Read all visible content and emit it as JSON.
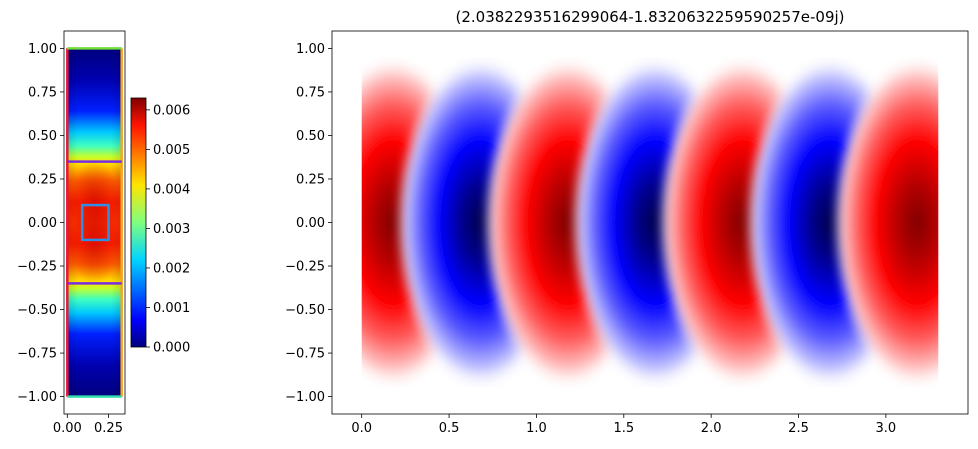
{
  "chart_data": [
    {
      "type": "heatmap",
      "title": "",
      "xlabel": "",
      "ylabel": "",
      "xlim": [
        -0.02,
        0.35
      ],
      "ylim": [
        -1.1,
        1.1
      ],
      "xticks": [
        0.0,
        0.25
      ],
      "xtick_labels": [
        "0.00",
        "0.25"
      ],
      "yticks": [
        1.0,
        0.75,
        0.5,
        0.25,
        0.0,
        -0.25,
        -0.5,
        -0.75,
        -1.0
      ],
      "ytick_labels": [
        "1.00",
        "0.75",
        "0.50",
        "0.25",
        "0.00",
        "−0.25",
        "−0.50",
        "−0.75",
        "−1.00"
      ],
      "domain": {
        "x": [
          0.0,
          0.33
        ],
        "y": [
          -1.0,
          1.0
        ]
      },
      "colormap": "jet",
      "colorbar": {
        "range": [
          0.0,
          0.0063
        ],
        "ticks": [
          0.0,
          0.001,
          0.002,
          0.003,
          0.004,
          0.005,
          0.006
        ],
        "tick_labels": [
          "0.000",
          "0.001",
          "0.002",
          "0.003",
          "0.004",
          "0.005",
          "0.006"
        ]
      },
      "overlays": [
        {
          "name": "boundary-left",
          "color": "#e8183c",
          "x": [
            0.0,
            0.0
          ],
          "y": [
            -1.0,
            1.0
          ]
        },
        {
          "name": "boundary-right",
          "color": "#f5a623",
          "x": [
            0.33,
            0.33
          ],
          "y": [
            -1.0,
            1.0
          ]
        },
        {
          "name": "boundary-top",
          "color": "#6fe03a",
          "x": [
            0.0,
            0.33
          ],
          "y": [
            1.0,
            1.0
          ]
        },
        {
          "name": "boundary-bottom",
          "color": "#38e0b0",
          "x": [
            0.0,
            0.33
          ],
          "y": [
            -1.0,
            -1.0
          ]
        },
        {
          "name": "interface-upper",
          "color": "#7a2de0",
          "x": [
            0.0,
            0.33
          ],
          "y": [
            0.35,
            0.35
          ]
        },
        {
          "name": "interface-lower",
          "color": "#7a2de0",
          "x": [
            0.0,
            0.33
          ],
          "y": [
            -0.35,
            -0.35
          ]
        },
        {
          "name": "inclusion-square",
          "color": "#2e8fe6",
          "x": [
            0.09,
            0.25
          ],
          "y": [
            -0.1,
            0.1
          ]
        }
      ]
    },
    {
      "type": "heatmap",
      "title": "(2.0382293516299064-1.8320632259590257e-09j)",
      "xlabel": "",
      "ylabel": "",
      "xlim": [
        -0.17,
        3.47
      ],
      "ylim": [
        -1.1,
        1.1
      ],
      "xticks": [
        0.0,
        0.5,
        1.0,
        1.5,
        2.0,
        2.5,
        3.0
      ],
      "xtick_labels": [
        "0.0",
        "0.5",
        "1.0",
        "1.5",
        "2.0",
        "2.5",
        "3.0"
      ],
      "yticks": [
        1.0,
        0.75,
        0.5,
        0.25,
        0.0,
        -0.25,
        -0.5,
        -0.75,
        -1.0
      ],
      "ytick_labels": [
        "1.00",
        "0.75",
        "0.50",
        "0.25",
        "0.00",
        "−0.25",
        "−0.50",
        "−0.75",
        "−1.00"
      ],
      "domain": {
        "x": [
          0.0,
          3.3
        ],
        "y": [
          -0.95,
          0.95
        ]
      },
      "colormap": "seismic",
      "field": {
        "period": 1.0,
        "first_max_x": 0.18,
        "lobe_centers": [
          0.18,
          0.68,
          1.18,
          1.68,
          2.18,
          2.68,
          3.18
        ],
        "lobe_signs": [
          1,
          -1,
          1,
          -1,
          1,
          -1,
          1
        ]
      }
    }
  ]
}
